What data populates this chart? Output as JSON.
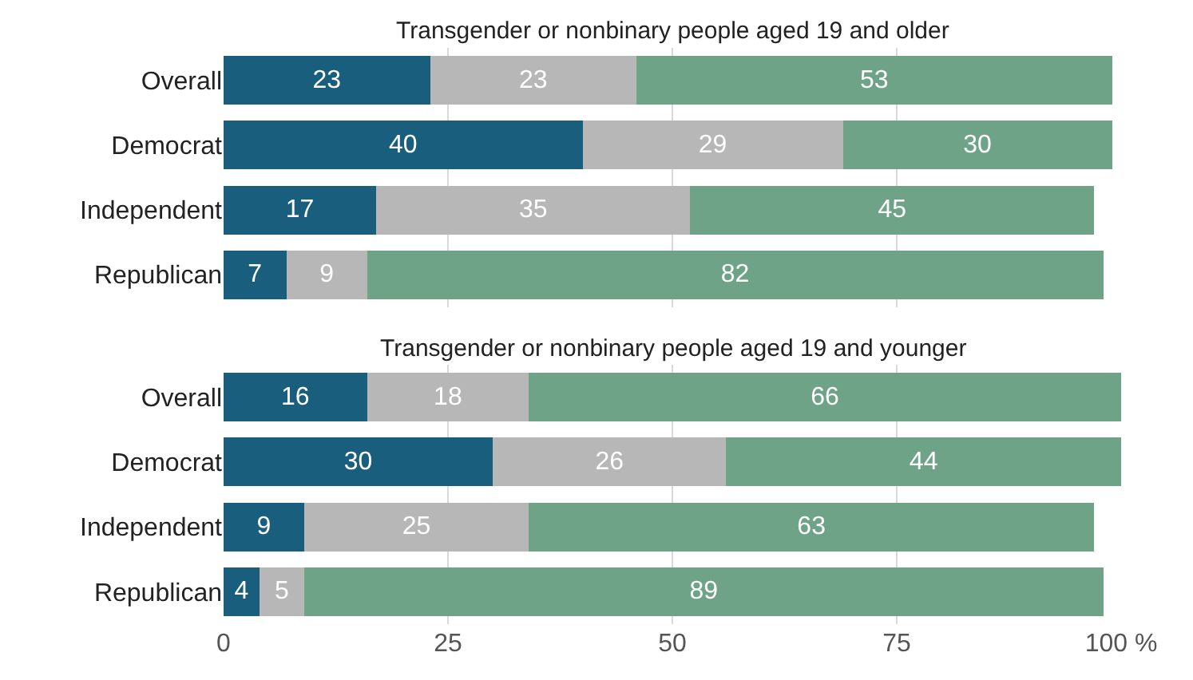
{
  "chart_data": [
    {
      "type": "bar",
      "title": "Transgender or nonbinary people aged 19 and older",
      "orientation": "horizontal",
      "stacked": true,
      "data_labels": true,
      "grid": "x",
      "tick_labels": "y",
      "categories": [
        "Overall",
        "Democrat",
        "Independent",
        "Republican"
      ],
      "xlim": [
        0,
        100
      ],
      "xticks": [
        {
          "value": 0,
          "label": null
        },
        {
          "value": 25,
          "label": null
        },
        {
          "value": 50,
          "label": null
        },
        {
          "value": 75,
          "label": null
        },
        {
          "value": 100,
          "label": null
        }
      ],
      "series": [
        {
          "color": "#1a5e7e",
          "values": [
            23,
            40,
            17,
            7
          ]
        },
        {
          "color": "#b7b7b7",
          "values": [
            23,
            29,
            35,
            9
          ]
        },
        {
          "color": "#6fa387",
          "values": [
            53,
            30,
            45,
            82
          ]
        }
      ]
    },
    {
      "type": "bar",
      "title": "Transgender or nonbinary people aged 19 and younger",
      "orientation": "horizontal",
      "stacked": true,
      "data_labels": true,
      "grid": "x",
      "categories": [
        "Overall",
        "Democrat",
        "Independent",
        "Republican"
      ],
      "xlim": [
        0,
        100
      ],
      "xticks": [
        0,
        25,
        50,
        75,
        {
          "value": 100,
          "label": "100 %"
        }
      ],
      "series": [
        {
          "color": "#1a5e7e",
          "values": [
            16,
            30,
            9,
            4
          ]
        },
        {
          "color": "#b7b7b7",
          "values": [
            18,
            26,
            25,
            5
          ]
        },
        {
          "color": "#6fa387",
          "values": [
            66,
            44,
            63,
            89
          ]
        }
      ]
    }
  ]
}
